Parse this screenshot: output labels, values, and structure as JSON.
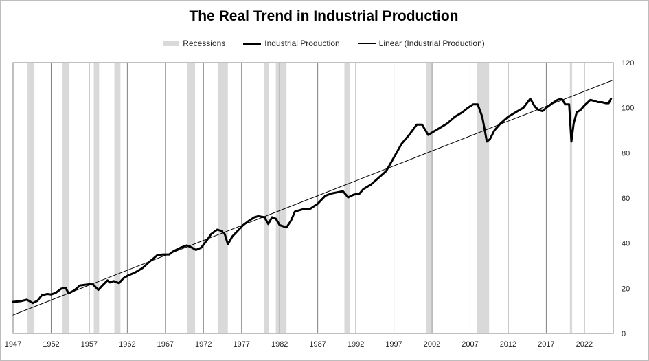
{
  "chart_data": {
    "type": "line",
    "title": "The Real Trend in Industrial Production",
    "xlabel": "",
    "ylabel": "",
    "xlim": [
      1947,
      2025.8
    ],
    "ylim": [
      0,
      120
    ],
    "y_ticks": [
      0,
      20,
      40,
      60,
      80,
      100,
      120
    ],
    "x_ticks": [
      1947,
      1952,
      1957,
      1962,
      1967,
      1972,
      1977,
      1982,
      1987,
      1992,
      1997,
      2002,
      2007,
      2012,
      2017,
      2022
    ],
    "y_axis_position": "right",
    "grid": "vertical",
    "legend": {
      "position": "top-center",
      "entries": [
        "Recessions",
        "Industrial Production",
        "Linear (Industrial Production)"
      ]
    },
    "recessions": [
      {
        "start": 1948.9,
        "end": 1949.8
      },
      {
        "start": 1953.5,
        "end": 1954.4
      },
      {
        "start": 1957.6,
        "end": 1958.3
      },
      {
        "start": 1960.3,
        "end": 1961.1
      },
      {
        "start": 1969.9,
        "end": 1970.9
      },
      {
        "start": 1973.9,
        "end": 1975.2
      },
      {
        "start": 1980.0,
        "end": 1980.6
      },
      {
        "start": 1981.5,
        "end": 1982.9
      },
      {
        "start": 1990.5,
        "end": 1991.2
      },
      {
        "start": 2001.2,
        "end": 2001.9
      },
      {
        "start": 2007.9,
        "end": 2009.5
      },
      {
        "start": 2020.1,
        "end": 2020.4
      }
    ],
    "series": [
      {
        "name": "Industrial Production",
        "x": [
          1947,
          1948,
          1948.8,
          1949.6,
          1950.2,
          1950.8,
          1951.5,
          1952,
          1952.6,
          1953.3,
          1953.9,
          1954.3,
          1955,
          1955.8,
          1956.5,
          1957,
          1957.5,
          1958.2,
          1958.8,
          1959.4,
          1959.7,
          1960.2,
          1960.9,
          1961.5,
          1962,
          1963,
          1964,
          1965,
          1966,
          1966.8,
          1967.5,
          1968,
          1969,
          1969.8,
          1970.5,
          1971,
          1971.7,
          1972.5,
          1973,
          1973.8,
          1974.3,
          1974.8,
          1975.2,
          1975.8,
          1976.5,
          1977.2,
          1978,
          1978.7,
          1979.2,
          1980,
          1980.5,
          1981,
          1981.5,
          1982,
          1982.9,
          1983.5,
          1984,
          1985,
          1986,
          1987,
          1988,
          1988.8,
          1989.5,
          1990.3,
          1991,
          1991.7,
          1992.5,
          1993,
          1994,
          1995,
          1996,
          1997,
          1998,
          1999,
          2000,
          2000.7,
          2001.5,
          2002,
          2003,
          2004,
          2005,
          2006,
          2006.7,
          2007.4,
          2008,
          2008.6,
          2009.2,
          2009.6,
          2010.2,
          2011,
          2012,
          2013,
          2014,
          2014.9,
          2015.5,
          2016,
          2016.5,
          2017,
          2017.8,
          2018.5,
          2019,
          2019.5,
          2020,
          2020.1,
          2020.3,
          2020.6,
          2021,
          2021.5,
          2022,
          2022.8,
          2023.3,
          2023.8,
          2024.3,
          2024.8,
          2025.2,
          2025.5
        ],
        "values": [
          14,
          14.3,
          15,
          13.5,
          14.5,
          17,
          17.5,
          17.3,
          18,
          19.8,
          20.2,
          17.8,
          19,
          21.3,
          21.6,
          21.8,
          21.7,
          19.3,
          21.5,
          23.5,
          22.6,
          23.2,
          22.3,
          24.5,
          25.5,
          27,
          29,
          32,
          34.8,
          35,
          35,
          36.3,
          38,
          39,
          38,
          37,
          38,
          41.5,
          44,
          46,
          45.5,
          44,
          39.5,
          43,
          45.5,
          48,
          50,
          51.5,
          52,
          51.5,
          48.5,
          51.5,
          50.8,
          48,
          47,
          50,
          54,
          55,
          55.2,
          57.5,
          61,
          62,
          62.5,
          63,
          60.3,
          61.5,
          62,
          64,
          66,
          69,
          72,
          78,
          84,
          88,
          92.5,
          92.5,
          88,
          89,
          91,
          93,
          96,
          98,
          100,
          101.5,
          101.5,
          96,
          85,
          86,
          90,
          93,
          96,
          98,
          100,
          104,
          100.5,
          99,
          98.5,
          100,
          102,
          103.5,
          104,
          101.5,
          101.5,
          96,
          85,
          93,
          98,
          99,
          101,
          103.5,
          103,
          102.5,
          102.5,
          102,
          102,
          104
        ]
      },
      {
        "name": "Linear (Industrial Production)",
        "x": [
          1947,
          2025.8
        ],
        "values": [
          8.2,
          112.3
        ]
      }
    ]
  },
  "legend": {
    "recessions_label": "Recessions",
    "ip_label": "Industrial Production",
    "linear_label": "Linear (Industrial Production)"
  },
  "colors": {
    "recession_fill": "#d9d9d9",
    "series_line": "#000000",
    "gridline": "#808080",
    "plot_border": "#808080"
  }
}
